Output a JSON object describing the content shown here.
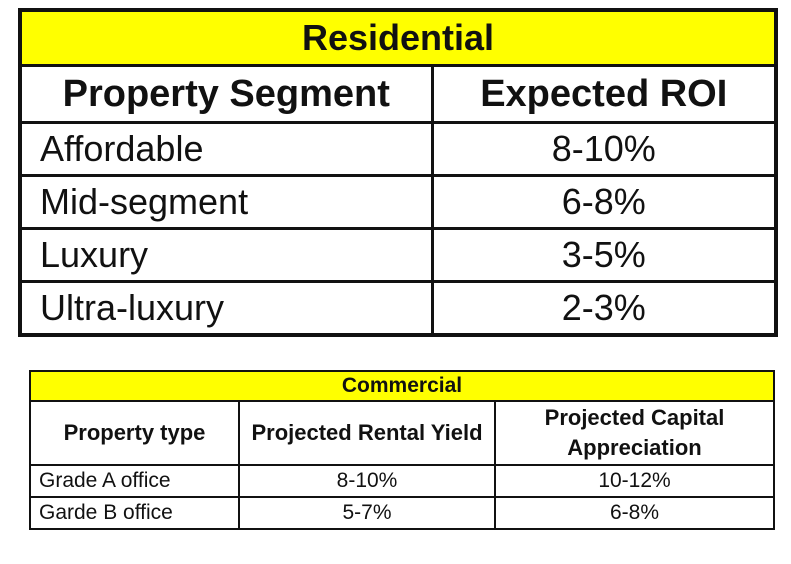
{
  "residential": {
    "title": "Residential",
    "headers": [
      "Property Segment",
      "Expected ROI"
    ],
    "rows": [
      {
        "segment": "Affordable",
        "roi": "8-10%"
      },
      {
        "segment": "Mid-segment",
        "roi": "6-8%"
      },
      {
        "segment": "Luxury",
        "roi": "3-5%"
      },
      {
        "segment": "Ultra-luxury",
        "roi": "2-3%"
      }
    ]
  },
  "commercial": {
    "title": "Commercial",
    "headers": [
      "Property type",
      "Projected Rental Yield",
      "Projected Capital Appreciation"
    ],
    "rows": [
      {
        "type": "Grade A office",
        "yield": "8-10%",
        "appreciation": "10-12%"
      },
      {
        "type": "Garde B office",
        "yield": "5-7%",
        "appreciation": "6-8%"
      }
    ]
  },
  "colors": {
    "title_background": "#ffff00",
    "border": "#111111"
  }
}
